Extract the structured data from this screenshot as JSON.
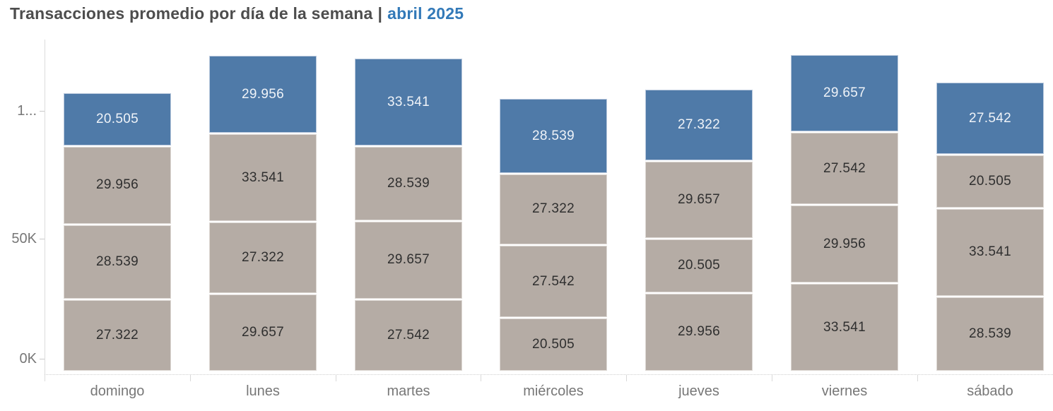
{
  "title": {
    "main": "Transacciones promedio por día de la semana",
    "separator": "|",
    "highlight": "abril 2025"
  },
  "colors": {
    "segment_blue": "#4f7aa8",
    "segment_blue_border": "#bac9dd",
    "segment_gray": "#b5aca5",
    "label_on_blue": "#eff3f8",
    "label_on_gray": "#2f2f2f",
    "title_dark": "#4d4d4d",
    "title_blue": "#3279b8",
    "axis_text": "#777777"
  },
  "chart_data": {
    "type": "bar",
    "stacked": true,
    "title": "Transacciones promedio por día de la semana | abril 2025",
    "xlabel": "",
    "ylabel": "",
    "ylim": [
      0,
      125000
    ],
    "grid": false,
    "legend": false,
    "y_axis_ticks": [
      {
        "label": "0K",
        "value": 0
      },
      {
        "label": "50K",
        "value": 50000
      },
      {
        "label": "1...",
        "value": 100000
      }
    ],
    "categories": [
      "domingo",
      "lunes",
      "martes",
      "miércoles",
      "jueves",
      "viernes",
      "sábado"
    ],
    "bars": [
      {
        "category": "domingo",
        "total": 106322,
        "segments": [
          {
            "value": 27322,
            "label": "27.322",
            "role": "gray"
          },
          {
            "value": 28539,
            "label": "28.539",
            "role": "gray"
          },
          {
            "value": 29956,
            "label": "29.956",
            "role": "gray"
          },
          {
            "value": 20505,
            "label": "20.505",
            "role": "blue"
          }
        ]
      },
      {
        "category": "lunes",
        "total": 120476,
        "segments": [
          {
            "value": 29657,
            "label": "29.657",
            "role": "gray"
          },
          {
            "value": 27322,
            "label": "27.322",
            "role": "gray"
          },
          {
            "value": 33541,
            "label": "33.541",
            "role": "gray"
          },
          {
            "value": 29956,
            "label": "29.956",
            "role": "blue"
          }
        ]
      },
      {
        "category": "martes",
        "total": 119279,
        "segments": [
          {
            "value": 27542,
            "label": "27.542",
            "role": "gray"
          },
          {
            "value": 29657,
            "label": "29.657",
            "role": "gray"
          },
          {
            "value": 28539,
            "label": "28.539",
            "role": "gray"
          },
          {
            "value": 33541,
            "label": "33.541",
            "role": "blue"
          }
        ]
      },
      {
        "category": "miércoles",
        "total": 103908,
        "segments": [
          {
            "value": 20505,
            "label": "20.505",
            "role": "gray"
          },
          {
            "value": 27542,
            "label": "27.542",
            "role": "gray"
          },
          {
            "value": 27322,
            "label": "27.322",
            "role": "gray"
          },
          {
            "value": 28539,
            "label": "28.539",
            "role": "blue"
          }
        ]
      },
      {
        "category": "jueves",
        "total": 107440,
        "segments": [
          {
            "value": 29956,
            "label": "29.956",
            "role": "gray"
          },
          {
            "value": 20505,
            "label": "20.505",
            "role": "gray"
          },
          {
            "value": 29657,
            "label": "29.657",
            "role": "gray"
          },
          {
            "value": 27322,
            "label": "27.322",
            "role": "blue"
          }
        ]
      },
      {
        "category": "viernes",
        "total": 120696,
        "segments": [
          {
            "value": 33541,
            "label": "33.541",
            "role": "gray"
          },
          {
            "value": 29956,
            "label": "29.956",
            "role": "gray"
          },
          {
            "value": 27542,
            "label": "27.542",
            "role": "gray"
          },
          {
            "value": 29657,
            "label": "29.657",
            "role": "blue"
          }
        ]
      },
      {
        "category": "sábado",
        "total": 110127,
        "segments": [
          {
            "value": 28539,
            "label": "28.539",
            "role": "gray"
          },
          {
            "value": 33541,
            "label": "33.541",
            "role": "gray"
          },
          {
            "value": 20505,
            "label": "20.505",
            "role": "gray"
          },
          {
            "value": 27542,
            "label": "27.542",
            "role": "blue"
          }
        ]
      }
    ]
  }
}
